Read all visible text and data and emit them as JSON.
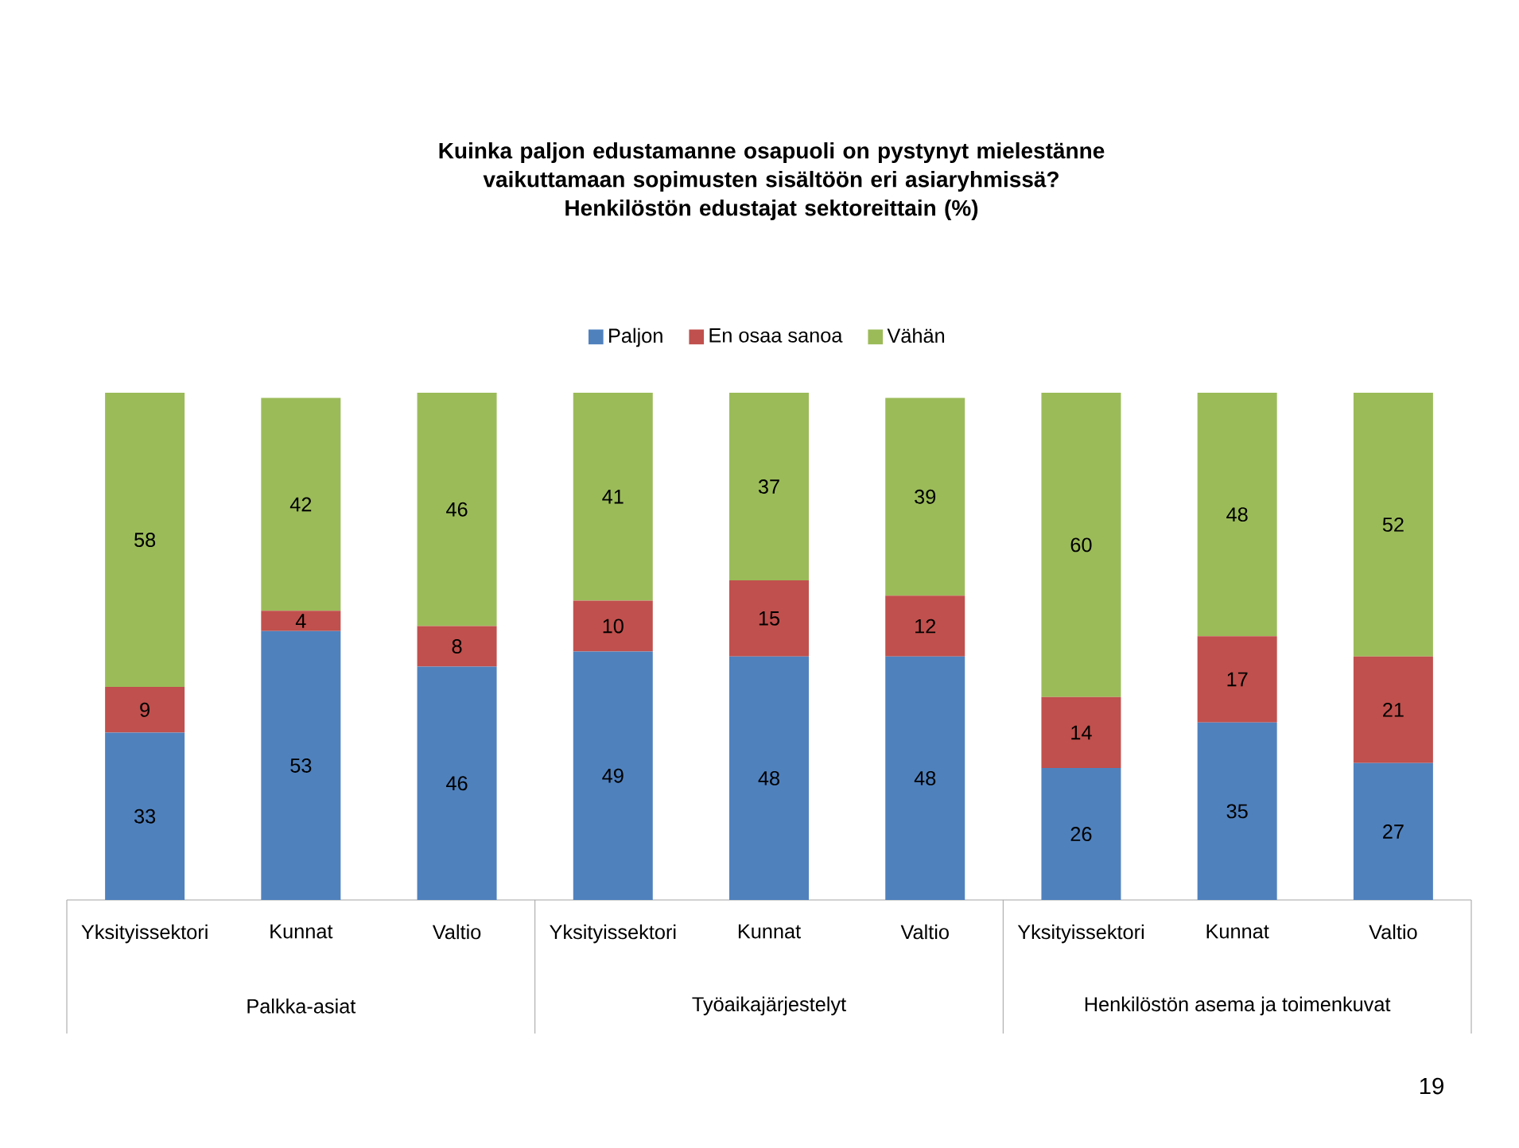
{
  "chart_data": {
    "type": "bar",
    "stacked": true,
    "title": "Kuinka paljon edustamanne osapuoli on pystynyt mielestänne vaikuttamaan sopimusten sisältöön eri asiaryhmissä?",
    "subtitle": "Henkilöstön edustajat sektoreittain (%)",
    "categories": [
      "Yksityissektori",
      "Kunnat",
      "Valtio",
      "Yksityissektori",
      "Kunnat",
      "Valtio",
      "Yksityissektori",
      "Kunnat",
      "Valtio"
    ],
    "series": [
      {
        "name": "Paljon",
        "color": "#4f81bd",
        "values": [
          33,
          53,
          46,
          49,
          48,
          48,
          26,
          35,
          27
        ]
      },
      {
        "name": "En osaa sanoa",
        "color": "#c0504d",
        "values": [
          9,
          4,
          8,
          10,
          15,
          12,
          14,
          17,
          21
        ]
      },
      {
        "name": "Vähän",
        "color": "#9bbb59",
        "values": [
          58,
          42,
          46,
          41,
          37,
          39,
          60,
          48,
          52
        ]
      }
    ],
    "data_labels": true,
    "legend": "top",
    "annotations": [
      "Palkka-asiat",
      "Työaikajärjestelyt",
      "Henkilöstön asema ja toimenkuvat",
      "19"
    ]
  }
}
